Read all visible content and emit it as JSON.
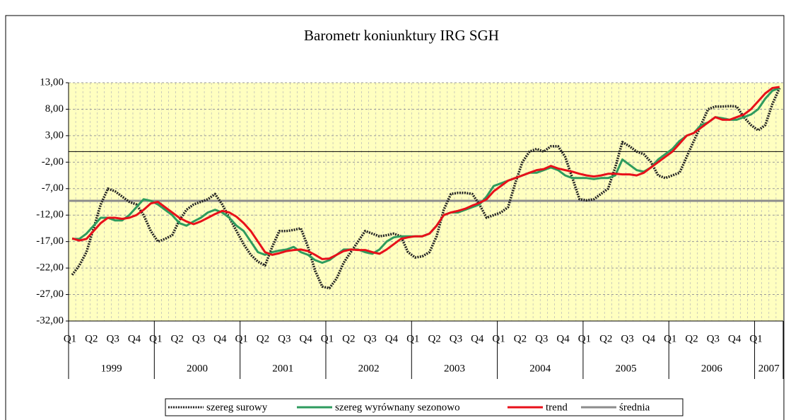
{
  "chart_data": {
    "type": "line",
    "title": "Barometr koniunktury IRG SGH",
    "categories": [
      "Q1",
      null,
      null,
      "Q2",
      null,
      null,
      "Q3",
      null,
      null,
      "Q4",
      null,
      null,
      "Q1",
      null,
      null,
      "Q2",
      null,
      null,
      "Q3",
      null,
      null,
      "Q4",
      null,
      null,
      "Q1",
      null,
      null,
      "Q2",
      null,
      null,
      "Q3",
      null,
      null,
      "Q4",
      null,
      null,
      "Q1",
      null,
      null,
      "Q2",
      null,
      null,
      "Q3",
      null,
      null,
      "Q4",
      null,
      null,
      "Q1",
      null,
      null,
      "Q2",
      null,
      null,
      "Q3",
      null,
      null,
      "Q4",
      null,
      null,
      "Q1",
      null,
      null,
      "Q2",
      null,
      null,
      "Q3",
      null,
      null,
      "Q4",
      null,
      null,
      "Q1",
      null,
      null,
      "Q2",
      null,
      null,
      "Q3",
      null,
      null,
      "Q4",
      null,
      null,
      "Q1",
      null,
      null,
      "Q2",
      null,
      null,
      "Q3",
      null,
      null,
      "Q4",
      null,
      null,
      "Q1",
      null,
      null,
      null
    ],
    "years": [
      "1999",
      "2000",
      "2001",
      "2002",
      "2003",
      "2004",
      "2005",
      "2006",
      "2007"
    ],
    "series": [
      {
        "name": "szereg surowy",
        "color": "#222222",
        "values": [
          -23.3,
          -21.5,
          -19,
          -14.5,
          -10,
          -7,
          -7.5,
          -8.5,
          -9.5,
          -10,
          -12,
          -15,
          -17,
          -16.5,
          -15.8,
          -13,
          -11,
          -10,
          -9.5,
          -9,
          -8,
          -10,
          -12.5,
          -15,
          -17.5,
          -19.5,
          -20.8,
          -21.5,
          -18,
          -15,
          -15,
          -14.8,
          -14.5,
          -18,
          -22.5,
          -25.5,
          -25.8,
          -24,
          -21,
          -19,
          -17,
          -15,
          -15.5,
          -16,
          -15.8,
          -15.5,
          -16,
          -19,
          -20,
          -19.8,
          -19,
          -16,
          -11,
          -8,
          -7.8,
          -7.8,
          -8,
          -10,
          -12.5,
          -12,
          -11.5,
          -10.5,
          -6,
          -2,
          0,
          0.5,
          0,
          1,
          1,
          -1,
          -5,
          -9,
          -9.2,
          -9,
          -8,
          -7,
          -3,
          1.8,
          1,
          0,
          -0.5,
          -2,
          -4.5,
          -5,
          -4.5,
          -4,
          -1,
          2,
          5,
          8,
          8.5,
          8.5,
          8.6,
          8.5,
          6.5,
          5,
          4,
          5,
          9,
          12
        ]
      },
      {
        "name": "szereg wyrównany sezonowo",
        "color": "#2e9b5e",
        "values": [
          -16.5,
          -16.5,
          -15.5,
          -14,
          -12.5,
          -12.5,
          -13,
          -13,
          -12,
          -10.5,
          -9,
          -9.3,
          -10,
          -11,
          -12,
          -13.5,
          -14,
          -13.2,
          -12.5,
          -11.5,
          -11,
          -11.5,
          -12.5,
          -14,
          -15,
          -17,
          -19,
          -19.5,
          -19,
          -18.7,
          -18.5,
          -18,
          -19,
          -19.5,
          -20.5,
          -21,
          -20.5,
          -19.5,
          -18.5,
          -18.5,
          -18.5,
          -19,
          -19.3,
          -18.5,
          -17,
          -16.2,
          -16,
          -16,
          -16,
          -16,
          -15.5,
          -14,
          -12,
          -11.5,
          -11.5,
          -11,
          -10.5,
          -10,
          -8.5,
          -6.5,
          -6,
          -5.5,
          -5,
          -4.5,
          -4,
          -4,
          -3.5,
          -3,
          -3.5,
          -4.5,
          -5,
          -5,
          -5,
          -5.2,
          -5,
          -5,
          -4.5,
          -1.5,
          -2.5,
          -3.5,
          -3.8,
          -3,
          -1.5,
          -0.5,
          0.5,
          2,
          3,
          3.5,
          5,
          5.5,
          6.5,
          6.3,
          6,
          6,
          6.5,
          7,
          8,
          10,
          11.5,
          12
        ]
      },
      {
        "name": "trend",
        "color": "#e8101a",
        "values": [
          -16.4,
          -16.8,
          -16.5,
          -15,
          -13.5,
          -12.5,
          -12.5,
          -12.7,
          -12.5,
          -12,
          -11,
          -9.8,
          -9.5,
          -10.5,
          -11.5,
          -12.5,
          -13.2,
          -13.7,
          -13.2,
          -12.5,
          -11.8,
          -11.2,
          -11.5,
          -12.3,
          -13.5,
          -15,
          -17,
          -19,
          -19.5,
          -19.2,
          -18.8,
          -18.6,
          -18.5,
          -18.8,
          -19.5,
          -20.3,
          -20.2,
          -19.5,
          -18.8,
          -18.5,
          -18.6,
          -18.6,
          -19,
          -19.3,
          -18.5,
          -17.5,
          -16.5,
          -16.2,
          -16,
          -16,
          -15.5,
          -14,
          -12,
          -11.5,
          -11.2,
          -10.8,
          -10.2,
          -9.7,
          -9,
          -7.5,
          -6.5,
          -5.5,
          -5,
          -4.5,
          -4,
          -3.5,
          -3.3,
          -2.7,
          -3.2,
          -3.5,
          -3.8,
          -4.2,
          -4.5,
          -4.7,
          -4.5,
          -4.2,
          -4.2,
          -4.3,
          -4.3,
          -4.5,
          -4,
          -3,
          -2,
          -1,
          0,
          1.5,
          3,
          3.5,
          4.5,
          5.5,
          6.5,
          6,
          6,
          6.5,
          7,
          8,
          9.5,
          11,
          12,
          12.2
        ]
      }
    ],
    "mean": {
      "name": "średnia",
      "color": "#8c8c8c",
      "value": -9.3
    },
    "ylim": [
      -32,
      13
    ],
    "yticks": [
      {
        "value": -32,
        "label": "-32,00"
      },
      {
        "value": -27,
        "label": "-27,00"
      },
      {
        "value": -22,
        "label": "-22,00"
      },
      {
        "value": -17,
        "label": "-17,00"
      },
      {
        "value": -12,
        "label": "-12,00"
      },
      {
        "value": -7,
        "label": "-7,00"
      },
      {
        "value": -2,
        "label": "-2,00"
      },
      {
        "value": 3,
        "label": "3,00"
      },
      {
        "value": 8,
        "label": "8,00"
      },
      {
        "value": 13,
        "label": "13,00"
      }
    ],
    "grid": true,
    "background": "#ffffc0"
  }
}
